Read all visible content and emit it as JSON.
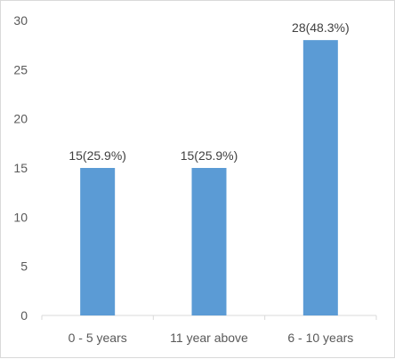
{
  "chart_data": {
    "type": "bar",
    "categories": [
      "0 - 5 years",
      "11 year above",
      "6 - 10 years"
    ],
    "values": [
      15,
      15,
      28
    ],
    "data_labels": [
      "15(25.9%)",
      "15(25.9%)",
      "28(48.3%)"
    ],
    "ylim": [
      0,
      30
    ],
    "yticks": [
      0,
      5,
      10,
      15,
      20,
      25,
      30
    ],
    "grid": false,
    "legend": "none",
    "bar_color": "#5b9bd5",
    "axis_color": "#d9d9d9"
  }
}
